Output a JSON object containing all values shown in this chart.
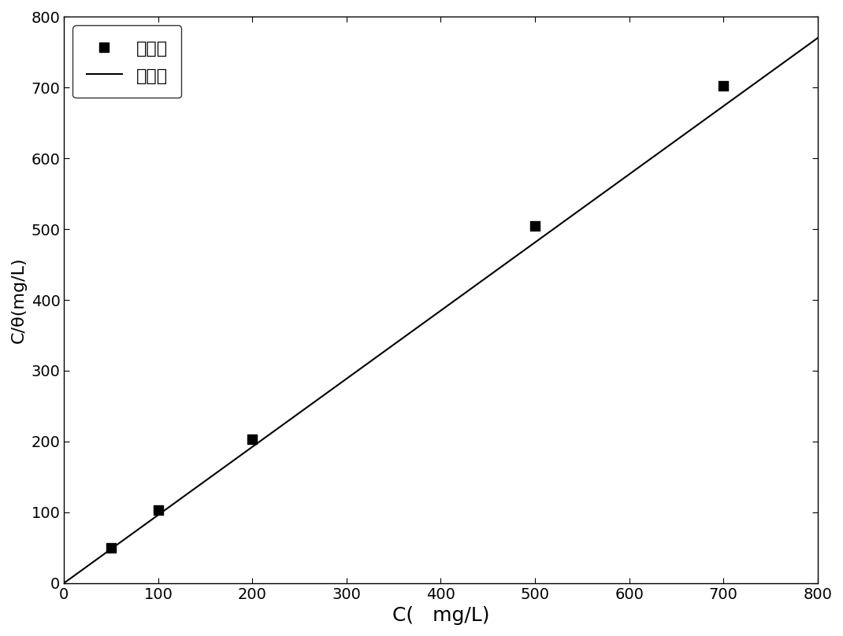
{
  "x_data": [
    50,
    100,
    200,
    500,
    700
  ],
  "y_data": [
    50,
    103,
    203,
    505,
    703
  ],
  "line_x": [
    0,
    800
  ],
  "line_y": [
    0,
    770
  ],
  "xlim": [
    0,
    800
  ],
  "ylim": [
    0,
    800
  ],
  "xticks": [
    0,
    100,
    200,
    300,
    400,
    500,
    600,
    700,
    800
  ],
  "yticks": [
    0,
    100,
    200,
    300,
    400,
    500,
    600,
    700,
    800
  ],
  "xlabel": "C(   mg/L)",
  "ylabel": "C/θ(mg/L)",
  "legend_marker_label": "缓蚀剂",
  "legend_line_label": "拟合线",
  "line_color": "#000000",
  "marker_color": "#000000",
  "background_color": "#ffffff",
  "marker_size": 9,
  "line_width": 1.5,
  "xlabel_fontsize": 18,
  "ylabel_fontsize": 16,
  "tick_fontsize": 14,
  "legend_fontsize": 16
}
